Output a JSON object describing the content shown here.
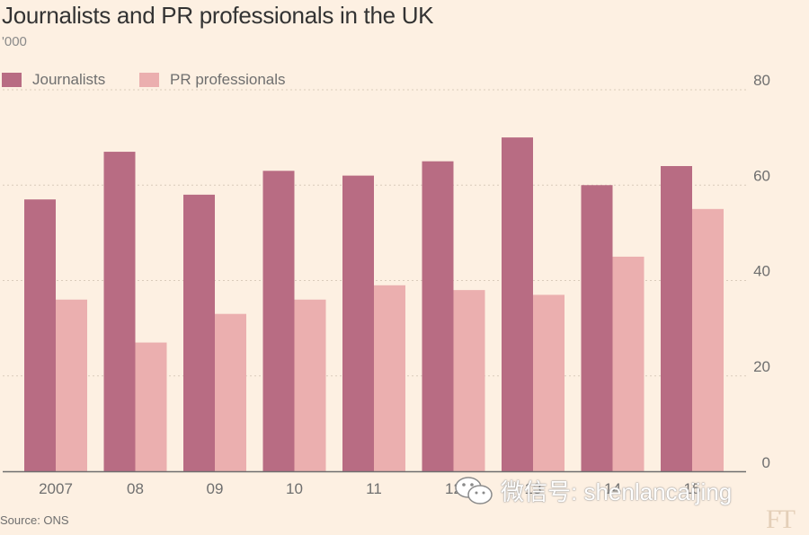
{
  "chart_data": {
    "type": "bar",
    "title": "Journalists and PR professionals in the UK",
    "subtitle": "'000",
    "categories": [
      "2007",
      "08",
      "09",
      "10",
      "11",
      "12",
      "13",
      "14",
      "15"
    ],
    "series": [
      {
        "name": "Journalists",
        "color": "#b86c83",
        "values": [
          57,
          67,
          58,
          63,
          62,
          65,
          70,
          60,
          64
        ]
      },
      {
        "name": "PR professionals",
        "color": "#ebafaf",
        "values": [
          36,
          27,
          33,
          36,
          39,
          38,
          37,
          45,
          55
        ]
      }
    ],
    "ylim": [
      0,
      80
    ],
    "yticks": [
      0,
      20,
      40,
      60,
      80
    ],
    "grid": true,
    "legend_position": "top-left",
    "y_axis_position": "right",
    "source": "Source: ONS"
  },
  "colors": {
    "background": "#fdf0e2",
    "gridline": "#d9cbbb",
    "axis": "#6f6f6f"
  },
  "watermark": {
    "text": "微信号: shenlancaijing",
    "icon": "wechat-icon"
  },
  "brand": "FT"
}
